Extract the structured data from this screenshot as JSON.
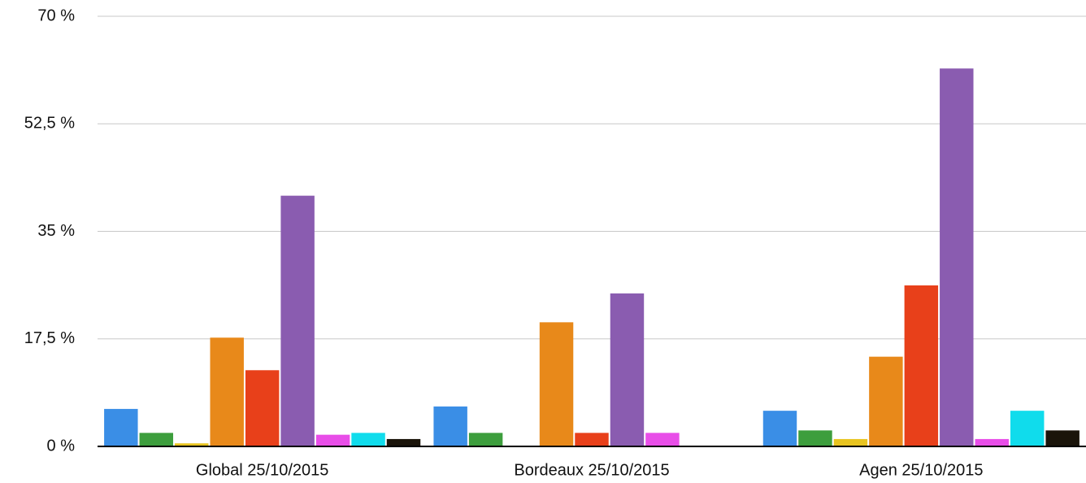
{
  "chart_data": {
    "type": "bar",
    "categories": [
      "Global 25/10/2015",
      "Bordeaux 25/10/2015",
      "Agen 25/10/2015"
    ],
    "series": [
      {
        "color": "#3a8ee6",
        "values": [
          6.1,
          6.5,
          5.8
        ]
      },
      {
        "color": "#3d9e3d",
        "values": [
          2.2,
          2.2,
          2.6
        ]
      },
      {
        "color": "#e8c420",
        "values": [
          0.5,
          0,
          1.2
        ]
      },
      {
        "color": "#e8891a",
        "values": [
          17.7,
          20.2,
          14.6
        ]
      },
      {
        "color": "#e8401a",
        "values": [
          12.4,
          2.2,
          26.2
        ]
      },
      {
        "color": "#8a5cb0",
        "values": [
          40.8,
          24.9,
          61.5
        ]
      },
      {
        "color": "#e84ee8",
        "values": [
          1.9,
          2.2,
          1.2
        ]
      },
      {
        "color": "#10dcec",
        "values": [
          2.2,
          0,
          5.8
        ]
      },
      {
        "color": "#1a140a",
        "values": [
          1.2,
          0,
          2.6
        ]
      }
    ],
    "ylim": [
      0,
      70
    ],
    "yticks": [
      {
        "value": 0,
        "label": "0 %"
      },
      {
        "value": 17.5,
        "label": "17,5 %"
      },
      {
        "value": 35,
        "label": "35 %"
      },
      {
        "value": 52.5,
        "label": "52,5 %"
      },
      {
        "value": 70,
        "label": "70 %"
      }
    ],
    "grid": true
  }
}
